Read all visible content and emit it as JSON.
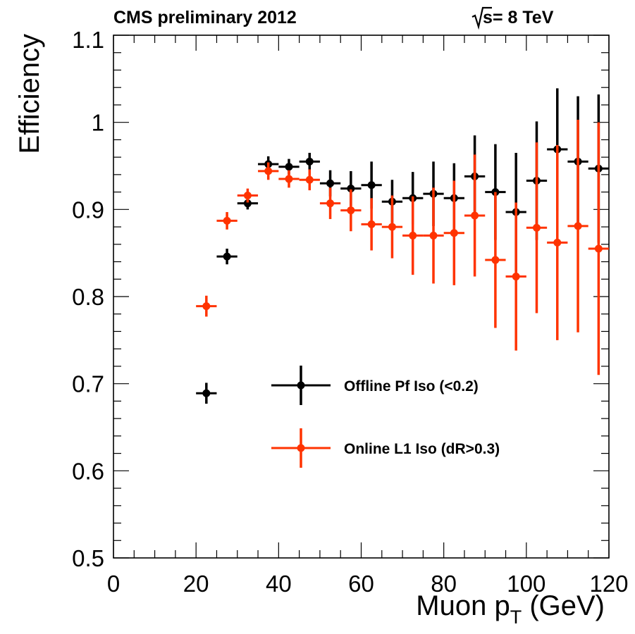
{
  "header": {
    "left": "CMS preliminary 2012",
    "right_radicand": "s",
    "right_rest": " = 8 TeV"
  },
  "chart_data": {
    "type": "scatter",
    "title": "",
    "xlabel_main": "Muon p",
    "xlabel_sub": "T",
    "xlabel_unit": "(GeV)",
    "ylabel": "Efficiency",
    "xlim": [
      0,
      120
    ],
    "ylim": [
      0.5,
      1.1
    ],
    "x_ticks": [
      0,
      20,
      40,
      60,
      80,
      100,
      120
    ],
    "y_ticks": [
      0.5,
      0.6,
      0.7,
      0.8,
      0.9,
      1
    ],
    "y_tick_labels": [
      "0.5",
      "0.6",
      "0.7",
      "0.8",
      "0.9",
      "1"
    ],
    "y_top_label": "1.1",
    "grid": false,
    "legend_position": "center",
    "x_bin_halfwidth": 2.5,
    "series": [
      {
        "name": "Offline Pf Iso (<0.2)",
        "color": "#000000",
        "x": [
          22.5,
          27.5,
          32.5,
          37.5,
          42.5,
          47.5,
          52.5,
          57.5,
          62.5,
          67.5,
          72.5,
          77.5,
          82.5,
          87.5,
          92.5,
          97.5,
          102.5,
          107.5,
          112.5,
          117.5
        ],
        "y": [
          0.689,
          0.846,
          0.907,
          0.952,
          0.949,
          0.955,
          0.93,
          0.924,
          0.928,
          0.909,
          0.913,
          0.918,
          0.913,
          0.938,
          0.92,
          0.897,
          0.933,
          0.969,
          0.955,
          0.947
        ],
        "yerr_low": [
          0.012,
          0.009,
          0.007,
          0.009,
          0.009,
          0.01,
          0.015,
          0.02,
          0.027,
          0.025,
          0.03,
          0.037,
          0.04,
          0.047,
          0.055,
          0.068,
          0.068,
          0.07,
          0.075,
          0.085
        ],
        "yerr_high": [
          0.012,
          0.009,
          0.007,
          0.009,
          0.009,
          0.01,
          0.015,
          0.02,
          0.027,
          0.025,
          0.03,
          0.037,
          0.04,
          0.047,
          0.055,
          0.068,
          0.068,
          0.07,
          0.075,
          0.085
        ]
      },
      {
        "name": "Online L1 Iso (dR>0.3)",
        "color": "#ff3300",
        "x": [
          22.5,
          27.5,
          32.5,
          37.5,
          42.5,
          47.5,
          52.5,
          57.5,
          62.5,
          67.5,
          72.5,
          77.5,
          82.5,
          87.5,
          92.5,
          97.5,
          102.5,
          107.5,
          112.5,
          117.5
        ],
        "y": [
          0.789,
          0.887,
          0.916,
          0.944,
          0.935,
          0.934,
          0.907,
          0.899,
          0.883,
          0.88,
          0.87,
          0.87,
          0.873,
          0.893,
          0.842,
          0.823,
          0.879,
          0.862,
          0.881,
          0.855
        ],
        "yerr_low": [
          0.012,
          0.01,
          0.008,
          0.01,
          0.01,
          0.012,
          0.018,
          0.024,
          0.03,
          0.036,
          0.045,
          0.055,
          0.06,
          0.07,
          0.078,
          0.085,
          0.098,
          0.112,
          0.122,
          0.145
        ],
        "yerr_high": [
          0.012,
          0.01,
          0.008,
          0.01,
          0.01,
          0.012,
          0.018,
          0.024,
          0.03,
          0.036,
          0.045,
          0.055,
          0.06,
          0.07,
          0.078,
          0.085,
          0.098,
          0.112,
          0.122,
          0.145
        ]
      }
    ]
  }
}
